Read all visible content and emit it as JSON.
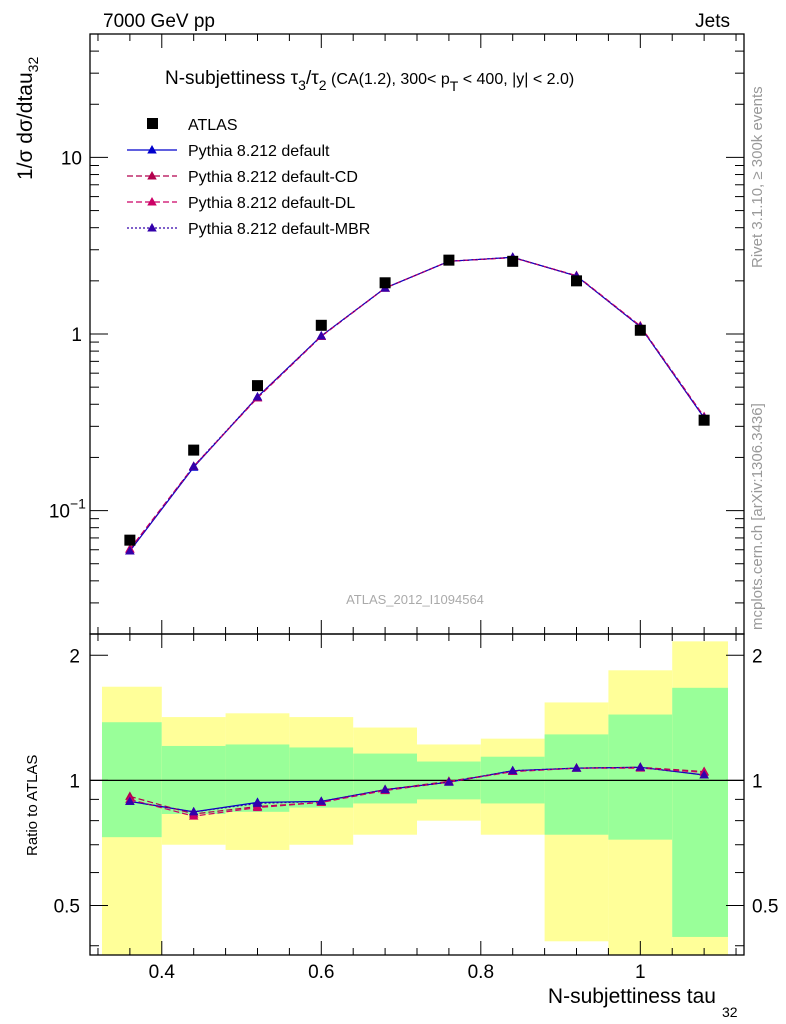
{
  "header": {
    "left": "7000 GeV pp",
    "right": "Jets"
  },
  "side_labels": {
    "rivet": "Rivet 3.1.10, ≥ 300k events",
    "mcplots": "mcplots.cern.ch [arXiv:1306.3436]"
  },
  "plot_title": {
    "main": "N-subjettiness τ",
    "sub3": "3",
    "slash": "/τ",
    "sub2": "2",
    "cut_a": " (CA(1.2), 300< p",
    "cut_sub": "T",
    "cut_b": " < 400, |y| < 2.0)"
  },
  "analysis_id": "ATLAS_2012_I1094564",
  "chart_data": {
    "type": "line",
    "xlabel": "N-subjettiness tau",
    "xlabel_sub": "32",
    "ylabel": "1/σ dσ/dtau",
    "ylabel_sub": "32",
    "ratio_ylabel": "Ratio to ATLAS",
    "xlim": [
      0.31,
      1.13
    ],
    "ylim": [
      0.02,
      50
    ],
    "yscale": "log",
    "ratio_ylim": [
      0.38,
      2.25
    ],
    "x_ticks": [
      "0.4",
      "0.6",
      "0.8",
      "1"
    ],
    "y_ticks": [
      {
        "value": 10,
        "label": "10"
      },
      {
        "value": 1,
        "label": "1"
      },
      {
        "value": 0.1,
        "label": "10",
        "exp": "−1"
      }
    ],
    "ratio_ticks": [
      {
        "value": 2,
        "label": "2"
      },
      {
        "value": 1,
        "label": "1"
      },
      {
        "value": 0.5,
        "label": "0.5"
      }
    ],
    "x": [
      0.36,
      0.44,
      0.52,
      0.6,
      0.68,
      0.76,
      0.84,
      0.92,
      1.0,
      1.08
    ],
    "bin_edges": [
      0.32,
      0.4,
      0.48,
      0.56,
      0.64,
      0.72,
      0.8,
      0.88,
      0.96,
      1.04,
      1.12
    ],
    "data": {
      "name": "ATLAS",
      "values": [
        0.068,
        0.22,
        0.51,
        1.12,
        1.95,
        2.62,
        2.58,
        2.0,
        1.05,
        0.325
      ],
      "color": "#000000"
    },
    "series": [
      {
        "name": "Pythia 8.212 default",
        "values": [
          0.059,
          0.176,
          0.44,
          0.975,
          1.82,
          2.58,
          2.72,
          2.13,
          1.1,
          0.335
        ],
        "color": "#0000cc",
        "dash": ""
      },
      {
        "name": "Pythia 8.212 default-CD",
        "values": [
          0.0605,
          0.178,
          0.435,
          0.97,
          1.82,
          2.58,
          2.71,
          2.14,
          1.11,
          0.34
        ],
        "color": "#b2004d",
        "dash": "6,3"
      },
      {
        "name": "Pythia 8.212 default-DL",
        "values": [
          0.0605,
          0.178,
          0.435,
          0.97,
          1.82,
          2.58,
          2.71,
          2.14,
          1.11,
          0.34
        ],
        "color": "#cc0066",
        "dash": "6,3"
      },
      {
        "name": "Pythia 8.212 default-MBR",
        "values": [
          0.059,
          0.178,
          0.44,
          0.975,
          1.82,
          2.58,
          2.72,
          2.13,
          1.1,
          0.335
        ],
        "color": "#3300aa",
        "dash": "2,2"
      }
    ],
    "ratios": [
      [
        0.89,
        0.84,
        0.885,
        0.89,
        0.95,
        0.99,
        1.055,
        1.07,
        1.075,
        1.03
      ],
      [
        0.915,
        0.83,
        0.865,
        0.885,
        0.95,
        0.995,
        1.05,
        1.07,
        1.075,
        1.05
      ],
      [
        0.9,
        0.82,
        0.86,
        0.885,
        0.945,
        0.99,
        1.05,
        1.07,
        1.07,
        1.045
      ],
      [
        0.89,
        0.84,
        0.88,
        0.89,
        0.95,
        0.99,
        1.055,
        1.07,
        1.075,
        1.03
      ]
    ],
    "band_inner": [
      [
        0.73,
        1.38
      ],
      [
        0.83,
        1.21
      ],
      [
        0.84,
        1.22
      ],
      [
        0.86,
        1.2
      ],
      [
        0.88,
        1.16
      ],
      [
        0.9,
        1.11
      ],
      [
        0.88,
        1.14
      ],
      [
        0.74,
        1.29
      ],
      [
        0.72,
        1.44
      ],
      [
        0.42,
        1.67
      ]
    ],
    "band_outer": [
      [
        0.2,
        1.68
      ],
      [
        0.7,
        1.42
      ],
      [
        0.68,
        1.45
      ],
      [
        0.7,
        1.42
      ],
      [
        0.74,
        1.34
      ],
      [
        0.8,
        1.22
      ],
      [
        0.74,
        1.26
      ],
      [
        0.41,
        1.54
      ],
      [
        0.36,
        1.84
      ],
      [
        0.2,
        2.16
      ]
    ],
    "band_colors": {
      "inner": "#99ff99",
      "outer": "#ffff99"
    }
  }
}
